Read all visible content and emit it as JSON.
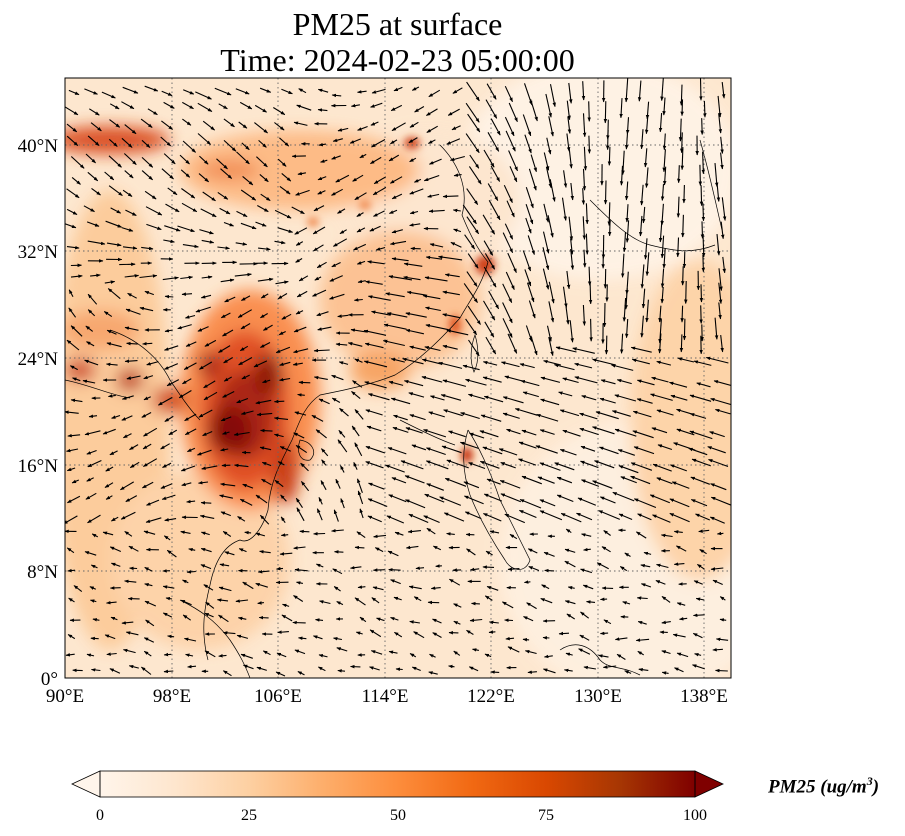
{
  "title": {
    "line1": "PM25 at surface",
    "line2": "Time: 2024-02-23 05:00:00"
  },
  "map": {
    "projection": "PlateCarree",
    "lon_range": [
      90,
      140
    ],
    "lat_range": [
      0,
      45
    ],
    "lon_ticks": [
      "90°E",
      "98°E",
      "106°E",
      "114°E",
      "122°E",
      "130°E",
      "138°E"
    ],
    "lat_ticks": [
      "0°",
      "8°N",
      "16°N",
      "24°N",
      "32°N",
      "40°N"
    ],
    "gridlines": "dotted",
    "field": "PM25 surface concentration (filled contours)",
    "overlay": "wind vectors (quiver)",
    "coastlines": true
  },
  "colorbar": {
    "label_text": "PM25 (ug/m",
    "label_sup": "3",
    "label_close": ")",
    "ticks": [
      "0",
      "25",
      "50",
      "75",
      "100"
    ],
    "range": [
      0,
      100
    ],
    "extend": "both",
    "colormap": [
      "#fff5eb",
      "#fee6ce",
      "#fdd0a2",
      "#fdae6b",
      "#fd8d3c",
      "#f16913",
      "#d94801",
      "#a63603",
      "#7f0000"
    ]
  }
}
